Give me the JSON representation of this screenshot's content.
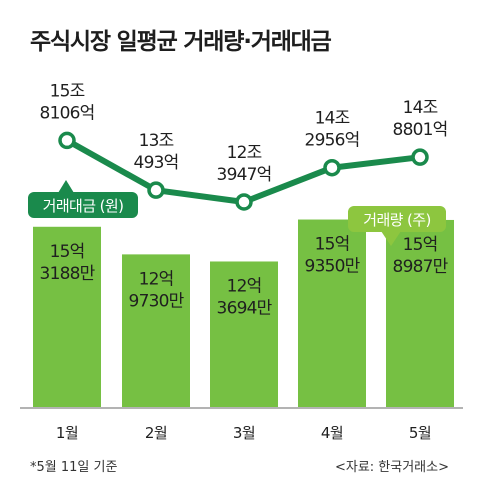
{
  "title": "주식시장 일평균 거래량·거래대금",
  "footnote": "*5월 11일 기준",
  "source": "<자료: 한국거래소>",
  "colors": {
    "line": "#1a8a4c",
    "bar": "#76c043",
    "legend_volume_bg": "#8dc63f",
    "text_dark": "#1f1f1f"
  },
  "chart_data": {
    "type": "bar",
    "categories": [
      "1월",
      "2월",
      "3월",
      "4월",
      "5월"
    ],
    "series": [
      {
        "name": "거래량 (주)",
        "type": "bar",
        "values": [
          1531880000,
          1297300000,
          1236940000,
          1593500000,
          1589870000
        ],
        "labels": [
          [
            "15억",
            "3188만"
          ],
          [
            "12억",
            "9730만"
          ],
          [
            "12억",
            "3694만"
          ],
          [
            "15억",
            "9350만"
          ],
          [
            "15억",
            "8987만"
          ]
        ]
      },
      {
        "name": "거래대금 (원)",
        "type": "line",
        "values": [
          15810600000000,
          13049300000000,
          12394700000000,
          14295600000000,
          14880100000000
        ],
        "labels": [
          [
            "15조",
            "8106억"
          ],
          [
            "13조",
            "493억"
          ],
          [
            "12조",
            "3947억"
          ],
          [
            "14조",
            "2956억"
          ],
          [
            "14조",
            "8801억"
          ]
        ]
      }
    ]
  }
}
